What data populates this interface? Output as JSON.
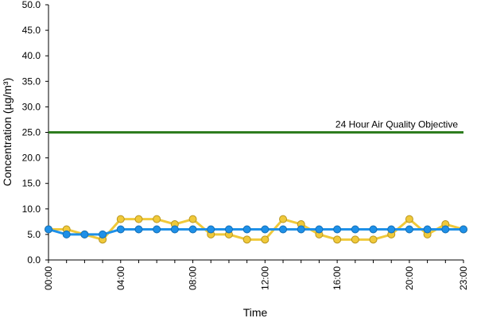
{
  "chart_data": {
    "type": "line",
    "xlabel": "Time",
    "ylabel": "Concentration (µg/m³)",
    "ylim": [
      0,
      50
    ],
    "y_ticks": [
      "0.0",
      "5.0",
      "10.0",
      "15.0",
      "20.0",
      "25.0",
      "30.0",
      "35.0",
      "40.0",
      "45.0",
      "50.0"
    ],
    "y_tick_values": [
      0,
      5,
      10,
      15,
      20,
      25,
      30,
      35,
      40,
      45,
      50
    ],
    "x": [
      0,
      1,
      2,
      3,
      4,
      5,
      6,
      7,
      8,
      9,
      10,
      11,
      12,
      13,
      14,
      15,
      16,
      17,
      18,
      19,
      20,
      21,
      22,
      23
    ],
    "x_ticks": [
      "00:00",
      "04:00",
      "08:00",
      "12:00",
      "16:00",
      "20:00",
      "23:00"
    ],
    "x_tick_values": [
      0,
      4,
      8,
      12,
      16,
      20,
      23
    ],
    "grid": false,
    "series": [
      {
        "color": "#F0C93A",
        "values": [
          6,
          6,
          5,
          4,
          8,
          8,
          8,
          7,
          8,
          5,
          5,
          4,
          4,
          8,
          7,
          5,
          4,
          4,
          4,
          5,
          8,
          5,
          7,
          6
        ]
      },
      {
        "color": "#1E90E8",
        "values": [
          6,
          5,
          5,
          5,
          6,
          6,
          6,
          6,
          6,
          6,
          6,
          6,
          6,
          6,
          6,
          6,
          6,
          6,
          6,
          6,
          6,
          6,
          6,
          6
        ]
      }
    ],
    "reference_line": {
      "label": "24 Hour Air Quality Objective",
      "value": 25,
      "color": "#2E7D1F"
    }
  }
}
